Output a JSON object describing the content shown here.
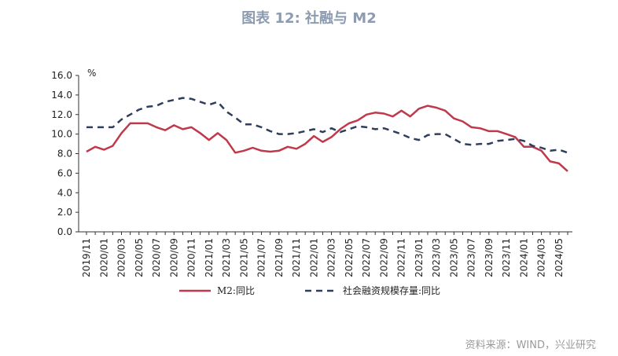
{
  "title": "图表 12: 社融与 M2",
  "source": "资料来源：WIND，兴业研究",
  "chart_data": {
    "type": "line",
    "title": "图表 12: 社融与 M2",
    "ylabel": "%",
    "ylim": [
      0,
      16
    ],
    "yticks": [
      "0.0",
      "2.0",
      "4.0",
      "6.0",
      "8.0",
      "10.0",
      "12.0",
      "14.0",
      "16.0"
    ],
    "xtick_labels": [
      "2019/11",
      "2020/01",
      "2020/03",
      "2020/05",
      "2020/07",
      "2020/09",
      "2020/11",
      "2021/01",
      "2021/03",
      "2021/05",
      "2021/07",
      "2021/09",
      "2021/11",
      "2022/01",
      "2022/03",
      "2022/05",
      "2022/07",
      "2022/09",
      "2022/11",
      "2023/01",
      "2023/03",
      "2023/05",
      "2023/07",
      "2023/09",
      "2023/11",
      "2024/01",
      "2024/03",
      "2024/05"
    ],
    "x": [
      "2019/11",
      "2019/12",
      "2020/01",
      "2020/02",
      "2020/03",
      "2020/04",
      "2020/05",
      "2020/06",
      "2020/07",
      "2020/08",
      "2020/09",
      "2020/10",
      "2020/11",
      "2020/12",
      "2021/01",
      "2021/02",
      "2021/03",
      "2021/04",
      "2021/05",
      "2021/06",
      "2021/07",
      "2021/08",
      "2021/09",
      "2021/10",
      "2021/11",
      "2021/12",
      "2022/01",
      "2022/02",
      "2022/03",
      "2022/04",
      "2022/05",
      "2022/06",
      "2022/07",
      "2022/08",
      "2022/09",
      "2022/10",
      "2022/11",
      "2022/12",
      "2023/01",
      "2023/02",
      "2023/03",
      "2023/04",
      "2023/05",
      "2023/06",
      "2023/07",
      "2023/08",
      "2023/09",
      "2023/10",
      "2023/11",
      "2023/12",
      "2024/01",
      "2024/02",
      "2024/03",
      "2024/04",
      "2024/05",
      "2024/06"
    ],
    "series": [
      {
        "name": "M2:同比",
        "color": "#c0394b",
        "style": "solid",
        "values": [
          8.2,
          8.7,
          8.4,
          8.8,
          10.1,
          11.1,
          11.1,
          11.1,
          10.7,
          10.4,
          10.9,
          10.5,
          10.7,
          10.1,
          9.4,
          10.1,
          9.4,
          8.1,
          8.3,
          8.6,
          8.3,
          8.2,
          8.3,
          8.7,
          8.5,
          9.0,
          9.8,
          9.2,
          9.7,
          10.5,
          11.1,
          11.4,
          12.0,
          12.2,
          12.1,
          11.8,
          12.4,
          11.8,
          12.6,
          12.9,
          12.7,
          12.4,
          11.6,
          11.3,
          10.7,
          10.6,
          10.3,
          10.3,
          10.0,
          9.7,
          8.7,
          8.7,
          8.3,
          7.2,
          7.0,
          6.2
        ]
      },
      {
        "name": "社会融资规模存量:同比",
        "color": "#2e3e5c",
        "style": "dashed",
        "values": [
          10.7,
          10.7,
          10.7,
          10.7,
          11.5,
          12.0,
          12.5,
          12.8,
          12.9,
          13.3,
          13.5,
          13.7,
          13.6,
          13.3,
          13.0,
          13.3,
          12.3,
          11.7,
          11.0,
          11.0,
          10.7,
          10.3,
          10.0,
          10.0,
          10.1,
          10.3,
          10.5,
          10.2,
          10.6,
          10.2,
          10.5,
          10.8,
          10.7,
          10.5,
          10.6,
          10.3,
          10.0,
          9.6,
          9.4,
          9.9,
          10.0,
          10.0,
          9.5,
          9.0,
          8.9,
          9.0,
          9.0,
          9.3,
          9.4,
          9.5,
          9.3,
          8.8,
          8.6,
          8.3,
          8.4,
          8.1
        ]
      }
    ],
    "grid": false,
    "legend_position": "bottom"
  }
}
